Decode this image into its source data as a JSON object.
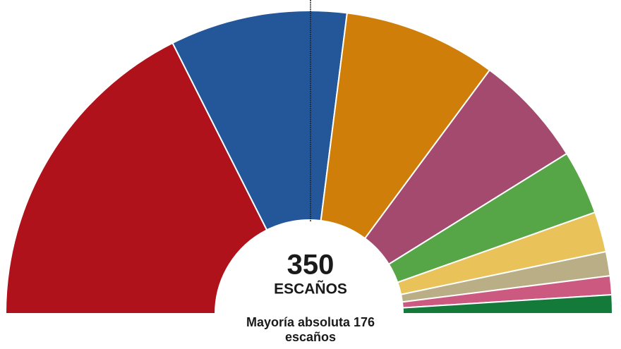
{
  "chart_data": {
    "type": "parliament",
    "total_label": "350",
    "subtitle": "ESCAÑOS",
    "majority_label": [
      "Mayoría absoluta 176",
      "escaños"
    ],
    "values": [
      123,
      66,
      57,
      42,
      24,
      15,
      9,
      7,
      7
    ],
    "colors": [
      "#b0121b",
      "#23579a",
      "#d07e0a",
      "#a34a6e",
      "#56a647",
      "#e9c35a",
      "#b9ae86",
      "#cc5a80",
      "#137a3a"
    ]
  }
}
